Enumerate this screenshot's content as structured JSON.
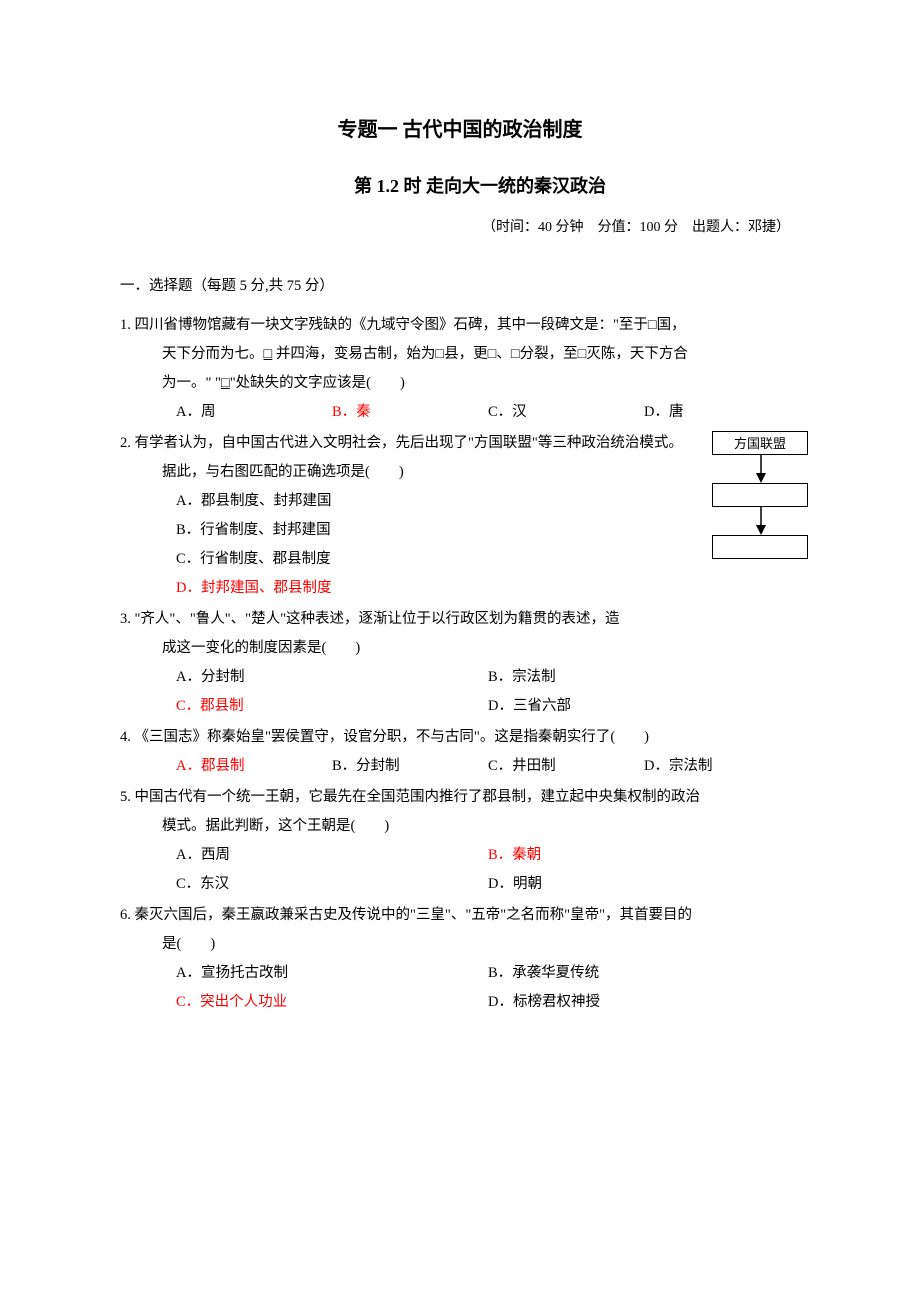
{
  "colors": {
    "text": "#000000",
    "answer": "#ff0000",
    "background": "#ffffff",
    "box_border": "#000000"
  },
  "fonts": {
    "body_family": "SimSun",
    "body_size_pt": 11,
    "title_size_pt": 16,
    "subtitle_size_pt": 14
  },
  "title_main": "专题一 古代中国的政治制度",
  "title_sub": "第 1.2 时 走向大一统的秦汉政治",
  "meta": "（时间：40 分钟　分值：100 分　出题人：邓捷）",
  "section_head": "一．选择题（每题 5 分,共 75 分）",
  "diagram": {
    "box1": "方国联盟",
    "box2": "",
    "box3": ""
  },
  "questions": [
    {
      "num": "1.",
      "stem_lines": [
        "四川省博物馆藏有一块文字残缺的《九域守令图》石碑，其中一段碑文是：\"至于□国，",
        "天下分而为七。□ 并四海，变易古制，始为□县，更□、□分裂，至□灭陈，天下方合",
        "为一。\" \"□\"处缺失的文字应该是(　　)"
      ],
      "underline_hint": [
        "□",
        "□"
      ],
      "opts": [
        {
          "label": "A．",
          "text": "周",
          "ans": false
        },
        {
          "label": "B．",
          "text": "秦",
          "ans": true
        },
        {
          "label": "C．",
          "text": "汉",
          "ans": false
        },
        {
          "label": "D．",
          "text": "唐",
          "ans": false
        }
      ],
      "cols": 4
    },
    {
      "num": "2.",
      "stem_lines": [
        "有学者认为，自中国古代进入文明社会，先后出现了\"方国联盟\"等三种政治统治模式。",
        "据此，与右图匹配的正确选项是(　　)"
      ],
      "opts": [
        {
          "label": "A．",
          "text": "郡县制度、封邦建国",
          "ans": false
        },
        {
          "label": "B．",
          "text": "行省制度、封邦建国",
          "ans": false
        },
        {
          "label": "C．",
          "text": "行省制度、郡县制度",
          "ans": false
        },
        {
          "label": "D．",
          "text": "封邦建国、郡县制度",
          "ans": true
        }
      ],
      "cols": 1,
      "has_diagram": true
    },
    {
      "num": "3.",
      "stem_lines": [
        "\"齐人\"、\"鲁人\"、\"楚人\"这种表述，逐渐让位于以行政区划为籍贯的表述，造",
        "成这一变化的制度因素是(　　)"
      ],
      "opts": [
        {
          "label": "A．",
          "text": "分封制",
          "ans": false
        },
        {
          "label": "B．",
          "text": "宗法制",
          "ans": false
        },
        {
          "label": "C．",
          "text": "郡县制",
          "ans": true
        },
        {
          "label": "D．",
          "text": "三省六部",
          "ans": false
        }
      ],
      "cols": 2
    },
    {
      "num": "4.",
      "stem_lines": [
        "《三国志》称秦始皇\"罢侯置守，设官分职，不与古同\"。这是指秦朝实行了(　　)"
      ],
      "opts": [
        {
          "label": "A．",
          "text": "郡县制",
          "ans": true
        },
        {
          "label": "B．",
          "text": "分封制",
          "ans": false
        },
        {
          "label": "C．",
          "text": "井田制",
          "ans": false
        },
        {
          "label": "D．",
          "text": "宗法制",
          "ans": false
        }
      ],
      "cols": 4
    },
    {
      "num": "5.",
      "stem_lines": [
        "中国古代有一个统一王朝，它最先在全国范围内推行了郡县制，建立起中央集权制的政治",
        "模式。据此判断，这个王朝是(　　)"
      ],
      "opts": [
        {
          "label": "A．",
          "text": "西周",
          "ans": false
        },
        {
          "label": "B．",
          "text": "秦朝",
          "ans": true
        },
        {
          "label": "C．",
          "text": "东汉",
          "ans": false
        },
        {
          "label": "D．",
          "text": "明朝",
          "ans": false
        }
      ],
      "cols": 2
    },
    {
      "num": "6.",
      "stem_lines": [
        "秦灭六国后，秦王嬴政兼采古史及传说中的\"三皇\"、\"五帝\"之名而称\"皇帝\"，其首要目的",
        "是(　　)"
      ],
      "opts": [
        {
          "label": "A．",
          "text": "宣扬托古改制",
          "ans": false
        },
        {
          "label": "B．",
          "text": "承袭华夏传统",
          "ans": false
        },
        {
          "label": "C．",
          "text": "突出个人功业",
          "ans": true
        },
        {
          "label": "D．",
          "text": "标榜君权神授",
          "ans": false
        }
      ],
      "cols": 2
    }
  ]
}
